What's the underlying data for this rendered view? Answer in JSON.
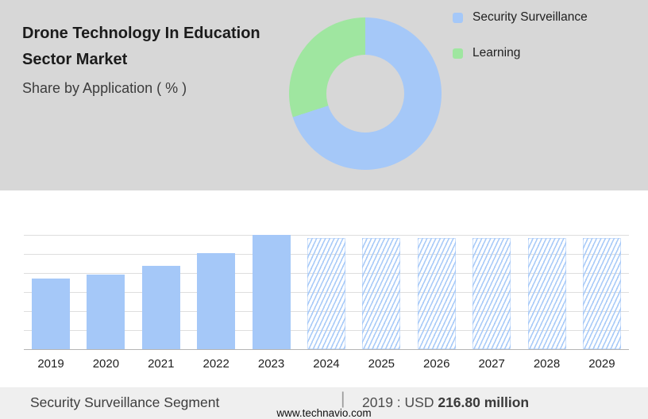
{
  "header": {
    "title_line1": "Drone Technology In Education",
    "title_line2": "Sector Market",
    "subtitle": "Share by Application ( % )"
  },
  "colors": {
    "top_background": "#d7d7d7",
    "bar_blue": "#a5c8f8",
    "legend_green": "#9fe6a0",
    "gridline": "#dedede",
    "footer_band": "#efefef"
  },
  "chart_data": [
    {
      "type": "pie",
      "title": "Share by Application ( % )",
      "donut": true,
      "legend_position": "right",
      "segments": [
        {
          "label": "Security Surveillance",
          "value": 70,
          "color": "#a5c8f8"
        },
        {
          "label": "Learning",
          "value": 30,
          "color": "#9fe6a0"
        }
      ]
    },
    {
      "type": "bar",
      "categories": [
        "2019",
        "2020",
        "2021",
        "2022",
        "2023",
        "2024",
        "2025",
        "2026",
        "2027",
        "2028",
        "2029"
      ],
      "relative_heights": [
        0.62,
        0.65,
        0.73,
        0.84,
        1.0,
        0.97,
        0.97,
        0.97,
        0.97,
        0.97,
        0.97
      ],
      "forecast": [
        false,
        false,
        false,
        false,
        false,
        true,
        true,
        true,
        true,
        true,
        true
      ],
      "unit": "USD million",
      "labeled_values": {
        "2019": 216.8
      },
      "bar_color": "#a5c8f8",
      "forecast_style": "hatched-diagonal",
      "grid": "horizontal",
      "y_axis_labels": false,
      "xlabel": "",
      "ylabel": ""
    }
  ],
  "footer": {
    "segment_label": "Security Surveillance Segment",
    "separator": "|",
    "value_prefix": "2019 : USD",
    "value_bold": "216.80 million",
    "website": "www.technavio.com"
  }
}
